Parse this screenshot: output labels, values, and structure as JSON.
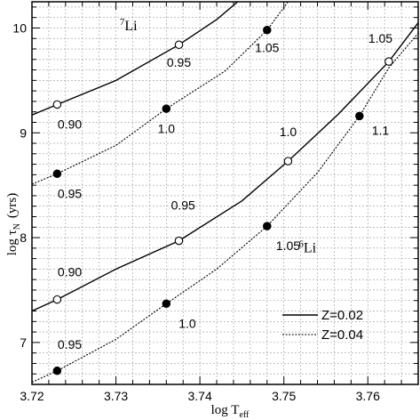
{
  "chart_data": {
    "type": "line",
    "xlabel": "log T",
    "xlabel_sub": "eff",
    "ylabel": "log τ",
    "ylabel_sub": "N",
    "ylabel_unit": "(yrs)",
    "xlim": [
      3.72,
      3.766
    ],
    "ylim": [
      6.6,
      10.25
    ],
    "x_ticks": [
      3.72,
      3.73,
      3.74,
      3.75,
      3.76
    ],
    "x_tick_labels": [
      "3.72",
      "3.73",
      "3.74",
      "3.75",
      "3.76"
    ],
    "y_ticks": [
      7,
      8,
      9,
      10
    ],
    "y_tick_labels": [
      "7",
      "8",
      "9",
      "10"
    ],
    "grid": true,
    "legend_position": "bottom-right",
    "legend": [
      {
        "label": "Z=0.02",
        "style": "solid"
      },
      {
        "label": "Z=0.04",
        "style": "dotted"
      }
    ],
    "series": [
      {
        "species": "7Li",
        "legend_ref": 0,
        "style": "solid",
        "x": [
          3.72,
          3.723,
          3.73,
          3.7375,
          3.742,
          3.7445
        ],
        "y": [
          9.17,
          9.27,
          9.5,
          9.84,
          10.08,
          10.25
        ],
        "markers": [
          {
            "x": 3.723,
            "y": 9.27,
            "filled": false
          },
          {
            "x": 3.7375,
            "y": 9.84,
            "filled": false
          }
        ]
      },
      {
        "species": "7Li",
        "legend_ref": 1,
        "style": "dotted",
        "x": [
          3.72,
          3.723,
          3.73,
          3.736,
          3.743,
          3.748,
          3.7505
        ],
        "y": [
          8.51,
          8.61,
          8.88,
          9.23,
          9.59,
          9.98,
          10.25
        ],
        "markers": [
          {
            "x": 3.723,
            "y": 8.61,
            "filled": true
          },
          {
            "x": 3.736,
            "y": 9.23,
            "filled": true
          },
          {
            "x": 3.748,
            "y": 9.98,
            "filled": true
          }
        ]
      },
      {
        "species": "6Li",
        "legend_ref": 0,
        "style": "solid",
        "x": [
          3.72,
          3.723,
          3.73,
          3.7375,
          3.745,
          3.7505,
          3.7565,
          3.7625,
          3.766
        ],
        "y": [
          7.3,
          7.41,
          7.7,
          7.97,
          8.35,
          8.73,
          9.18,
          9.68,
          10.05
        ],
        "markers": [
          {
            "x": 3.723,
            "y": 7.41,
            "filled": false
          },
          {
            "x": 3.7375,
            "y": 7.97,
            "filled": false
          },
          {
            "x": 3.7505,
            "y": 8.73,
            "filled": false
          },
          {
            "x": 3.7625,
            "y": 9.68,
            "filled": false
          }
        ]
      },
      {
        "species": "6Li",
        "legend_ref": 1,
        "style": "dotted",
        "x": [
          3.72,
          3.723,
          3.73,
          3.736,
          3.742,
          3.748,
          3.754,
          3.759,
          3.7625,
          3.766
        ],
        "y": [
          6.62,
          6.73,
          7.03,
          7.37,
          7.7,
          8.11,
          8.62,
          9.16,
          9.62,
          9.95
        ],
        "markers": [
          {
            "x": 3.723,
            "y": 6.73,
            "filled": true
          },
          {
            "x": 3.736,
            "y": 7.37,
            "filled": true
          },
          {
            "x": 3.748,
            "y": 8.11,
            "filled": true
          },
          {
            "x": 3.759,
            "y": 9.16,
            "filled": true
          }
        ]
      }
    ],
    "species_labels": [
      {
        "text": "Li",
        "sup": "7",
        "x": 3.7315,
        "y": 9.98
      },
      {
        "text": "Li",
        "sup": "6",
        "x": 3.7528,
        "y": 7.86
      }
    ],
    "annotations": [
      {
        "text": "0.95",
        "x": 3.7375,
        "y": 9.63
      },
      {
        "text": "1.05",
        "x": 3.748,
        "y": 9.77
      },
      {
        "text": "1.05",
        "x": 3.7615,
        "y": 9.86
      },
      {
        "text": "0.90",
        "x": 3.7245,
        "y": 9.04
      },
      {
        "text": "1.0",
        "x": 3.736,
        "y": 9.0
      },
      {
        "text": "1.0",
        "x": 3.7505,
        "y": 8.97
      },
      {
        "text": "1.1",
        "x": 3.7615,
        "y": 8.98
      },
      {
        "text": "0.95",
        "x": 3.7245,
        "y": 8.38
      },
      {
        "text": "0.95",
        "x": 3.738,
        "y": 8.27
      },
      {
        "text": "1.05",
        "x": 3.7505,
        "y": 7.88
      },
      {
        "text": "0.90",
        "x": 3.7245,
        "y": 7.63
      },
      {
        "text": "1.0",
        "x": 3.7385,
        "y": 7.14
      },
      {
        "text": "0.95",
        "x": 3.7245,
        "y": 6.94
      }
    ]
  }
}
